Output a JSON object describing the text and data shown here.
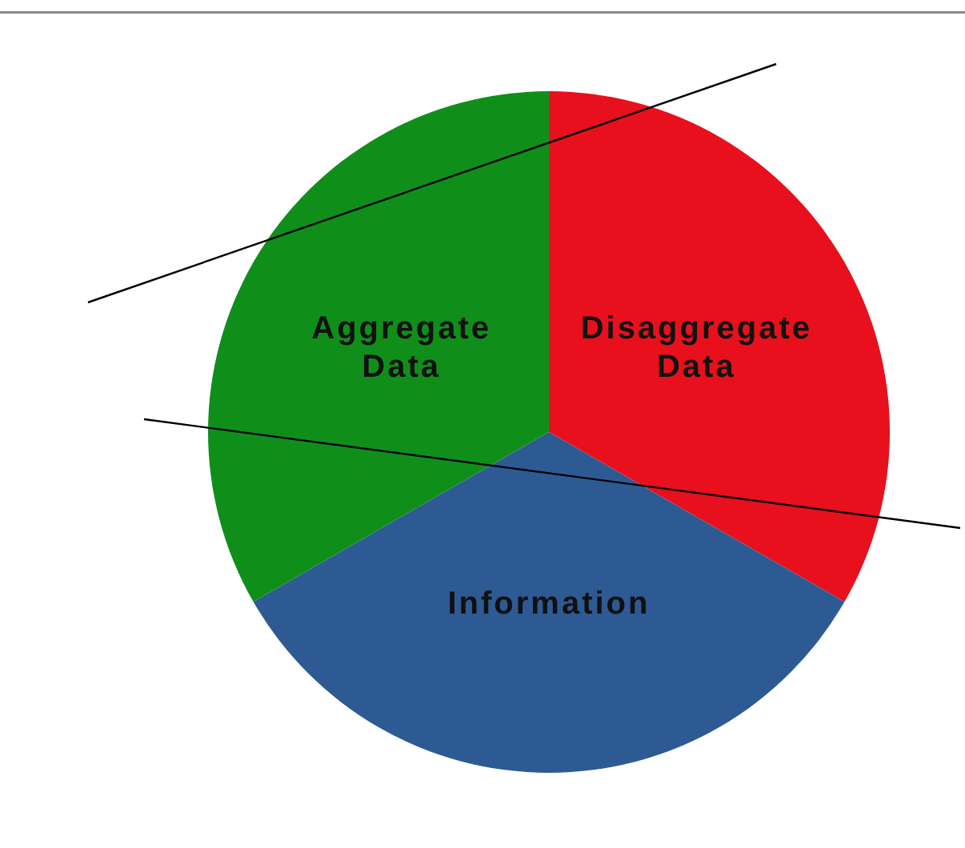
{
  "chart_data": {
    "type": "pie",
    "categories": [
      "Disaggregate Data",
      "Information",
      "Aggregate Data"
    ],
    "values": [
      33.3,
      33.4,
      33.3
    ],
    "colors": [
      "#e8101c",
      "#2e5a94",
      "#0f8f1a"
    ]
  }
}
